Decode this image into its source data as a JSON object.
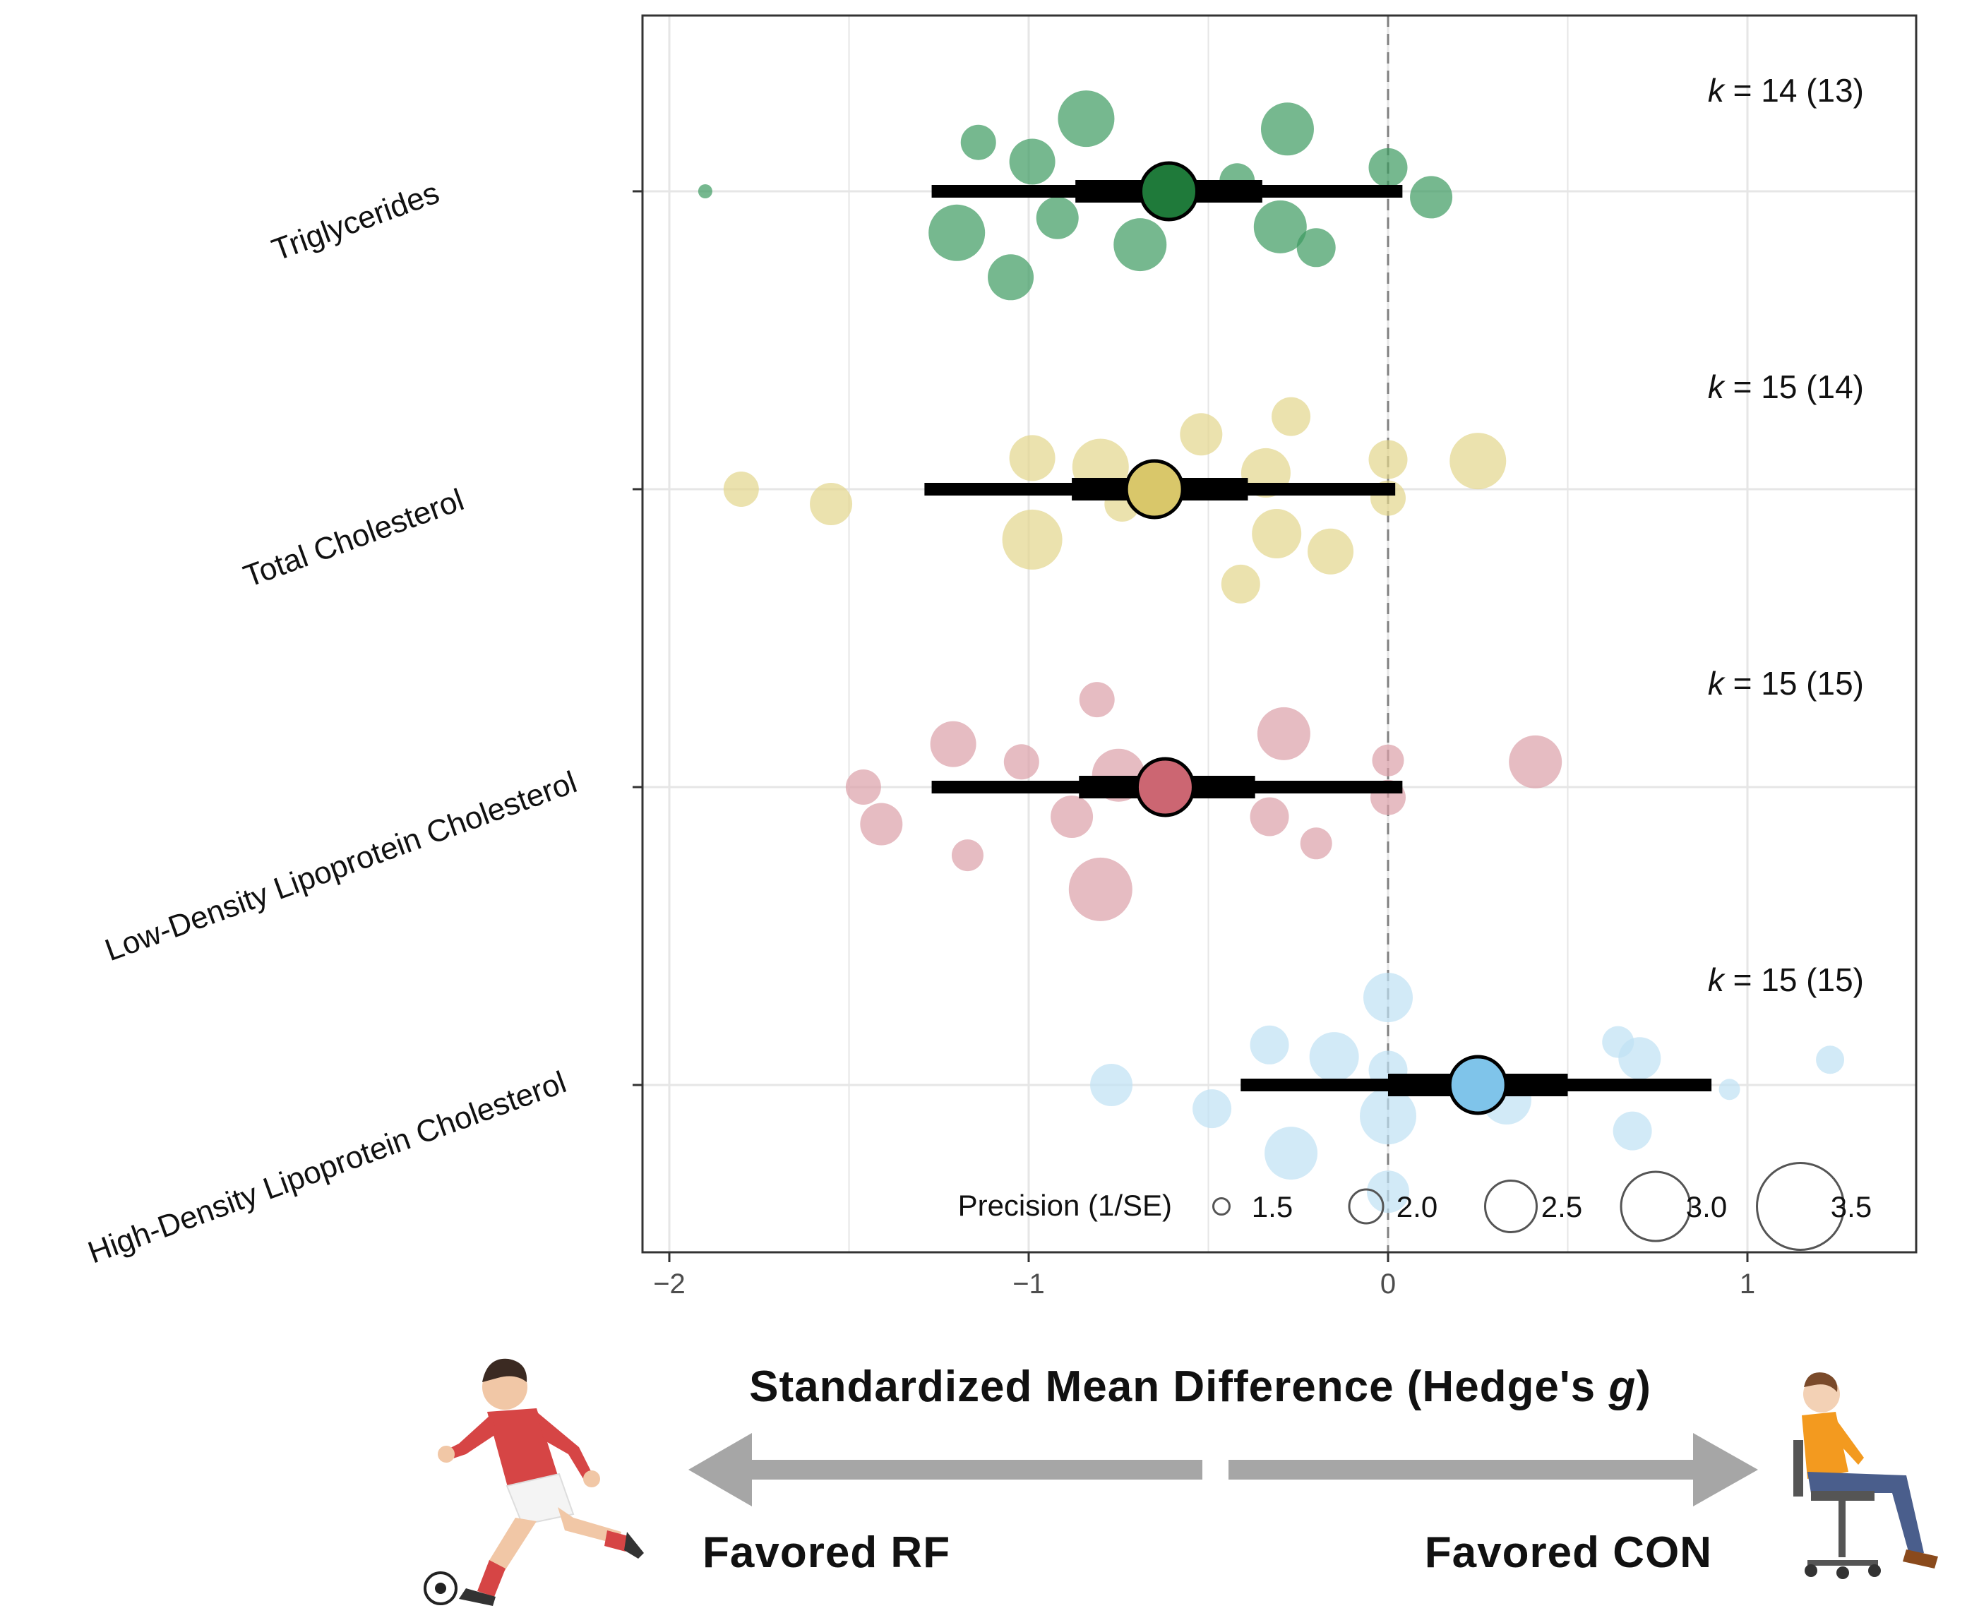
{
  "chart_data": {
    "type": "forest-orchard",
    "xlabel_prefix": "Standardized Mean Difference (Hedge's ",
    "xlabel_italic": "g",
    "xlabel_suffix": ")",
    "xlim": [
      -2.05,
      1.5
    ],
    "x_ticks": [
      -2,
      -1,
      0,
      1
    ],
    "x_tick_labels": [
      "−2",
      "−1",
      "0",
      "1"
    ],
    "reference_line": 0,
    "legend": {
      "title": "Precision (1/SE)",
      "values": [
        1.5,
        2.0,
        2.5,
        3.0,
        3.5
      ],
      "labels": [
        "1.5",
        "2.0",
        "2.5",
        "3.0",
        "3.5"
      ]
    },
    "series": [
      {
        "name": "Triglycerides",
        "color": "#1f7a3a",
        "point_color": "#3c9a5f",
        "k_prefix": "k",
        "k_text": " = 14 (13)",
        "estimate": -0.61,
        "ci": [
          -0.87,
          -0.35
        ],
        "pi": [
          -1.27,
          0.04
        ],
        "studies": [
          {
            "g": -1.9,
            "jitter": 0.0,
            "precision": 1.2
          },
          {
            "g": -1.14,
            "jitter": 0.33,
            "precision": 1.8
          },
          {
            "g": -0.84,
            "jitter": 0.49,
            "precision": 2.4
          },
          {
            "g": -0.99,
            "jitter": 0.2,
            "precision": 2.1
          },
          {
            "g": -0.42,
            "jitter": 0.07,
            "precision": 1.8
          },
          {
            "g": -0.28,
            "jitter": 0.42,
            "precision": 2.3
          },
          {
            "g": 0.0,
            "jitter": 0.16,
            "precision": 1.9
          },
          {
            "g": 0.12,
            "jitter": -0.04,
            "precision": 2.0
          },
          {
            "g": -1.2,
            "jitter": -0.28,
            "precision": 2.4
          },
          {
            "g": -0.92,
            "jitter": -0.18,
            "precision": 2.0
          },
          {
            "g": -0.69,
            "jitter": -0.36,
            "precision": 2.3
          },
          {
            "g": -0.3,
            "jitter": -0.24,
            "precision": 2.3
          },
          {
            "g": -0.2,
            "jitter": -0.38,
            "precision": 1.9
          },
          {
            "g": -1.05,
            "jitter": -0.58,
            "precision": 2.1
          }
        ]
      },
      {
        "name": "Total Cholesterol",
        "color": "#d9c76a",
        "point_color": "#e3d58c",
        "k_prefix": "k",
        "k_text": " = 15 (14)",
        "estimate": -0.65,
        "ci": [
          -0.88,
          -0.39
        ],
        "pi": [
          -1.29,
          0.02
        ],
        "studies": [
          {
            "g": -1.8,
            "jitter": 0.0,
            "precision": 1.8
          },
          {
            "g": -1.55,
            "jitter": -0.1,
            "precision": 2.0
          },
          {
            "g": -0.99,
            "jitter": 0.21,
            "precision": 2.1
          },
          {
            "g": -0.8,
            "jitter": 0.15,
            "precision": 2.4
          },
          {
            "g": -0.52,
            "jitter": 0.37,
            "precision": 2.0
          },
          {
            "g": -0.27,
            "jitter": 0.49,
            "precision": 1.9
          },
          {
            "g": -0.34,
            "jitter": 0.11,
            "precision": 2.2
          },
          {
            "g": 0.0,
            "jitter": 0.2,
            "precision": 1.9
          },
          {
            "g": 0.25,
            "jitter": 0.19,
            "precision": 2.4
          },
          {
            "g": 0.0,
            "jitter": -0.06,
            "precision": 1.8
          },
          {
            "g": -0.74,
            "jitter": -0.1,
            "precision": 1.8
          },
          {
            "g": -0.99,
            "jitter": -0.34,
            "precision": 2.5
          },
          {
            "g": -0.31,
            "jitter": -0.3,
            "precision": 2.2
          },
          {
            "g": -0.16,
            "jitter": -0.42,
            "precision": 2.1
          },
          {
            "g": -0.41,
            "jitter": -0.64,
            "precision": 1.9
          }
        ]
      },
      {
        "name": "Low-Density Lipoprotein Cholesterol",
        "color": "#cc6672",
        "point_color": "#dba0a8",
        "k_prefix": "k",
        "k_text": " = 15 (15)",
        "estimate": -0.62,
        "ci": [
          -0.86,
          -0.37
        ],
        "pi": [
          -1.27,
          0.04
        ],
        "studies": [
          {
            "g": -0.81,
            "jitter": 0.59,
            "precision": 1.8
          },
          {
            "g": -1.21,
            "jitter": 0.29,
            "precision": 2.1
          },
          {
            "g": -1.02,
            "jitter": 0.17,
            "precision": 1.8
          },
          {
            "g": -0.75,
            "jitter": 0.08,
            "precision": 2.3
          },
          {
            "g": -0.29,
            "jitter": 0.36,
            "precision": 2.3
          },
          {
            "g": 0.0,
            "jitter": 0.18,
            "precision": 1.7
          },
          {
            "g": 0.41,
            "jitter": 0.17,
            "precision": 2.3
          },
          {
            "g": 0.0,
            "jitter": -0.07,
            "precision": 1.8
          },
          {
            "g": -1.46,
            "jitter": 0.0,
            "precision": 1.8
          },
          {
            "g": -1.41,
            "jitter": -0.25,
            "precision": 2.0
          },
          {
            "g": -0.88,
            "jitter": -0.2,
            "precision": 2.0
          },
          {
            "g": -0.33,
            "jitter": -0.2,
            "precision": 1.9
          },
          {
            "g": -0.2,
            "jitter": -0.38,
            "precision": 1.7
          },
          {
            "g": -1.17,
            "jitter": -0.46,
            "precision": 1.7
          },
          {
            "g": -0.8,
            "jitter": -0.69,
            "precision": 2.6
          }
        ]
      },
      {
        "name": "High-Density Lipoprotein Cholesterol",
        "color": "#7fc4ea",
        "point_color": "#bfe1f4",
        "k_prefix": "k",
        "k_text": " = 15 (15)",
        "estimate": 0.25,
        "ci": [
          0.0,
          0.5
        ],
        "pi": [
          -0.41,
          0.9
        ],
        "studies": [
          {
            "g": 0.0,
            "jitter": 0.59,
            "precision": 2.2
          },
          {
            "g": -0.33,
            "jitter": 0.27,
            "precision": 1.9
          },
          {
            "g": -0.15,
            "jitter": 0.19,
            "precision": 2.2
          },
          {
            "g": 0.0,
            "jitter": 0.1,
            "precision": 1.9
          },
          {
            "g": 0.64,
            "jitter": 0.29,
            "precision": 1.7
          },
          {
            "g": 0.7,
            "jitter": 0.18,
            "precision": 2.0
          },
          {
            "g": 1.23,
            "jitter": 0.17,
            "precision": 1.6
          },
          {
            "g": -0.77,
            "jitter": 0.0,
            "precision": 2.0
          },
          {
            "g": 0.33,
            "jitter": -0.1,
            "precision": 2.2
          },
          {
            "g": 0.95,
            "jitter": -0.03,
            "precision": 1.4
          },
          {
            "g": -0.49,
            "jitter": -0.16,
            "precision": 1.9
          },
          {
            "g": 0.0,
            "jitter": -0.21,
            "precision": 2.4
          },
          {
            "g": 0.68,
            "jitter": -0.31,
            "precision": 1.9
          },
          {
            "g": -0.27,
            "jitter": -0.46,
            "precision": 2.3
          },
          {
            "g": 0.0,
            "jitter": -0.72,
            "precision": 2.0
          }
        ]
      }
    ]
  },
  "bottom": {
    "favored_left": "Favored RF",
    "favored_right": "Favored CON"
  }
}
